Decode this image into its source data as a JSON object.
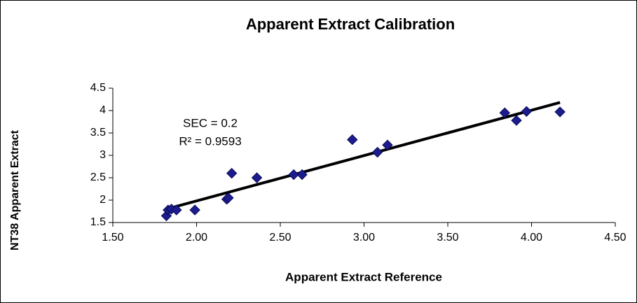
{
  "chart_data": {
    "type": "scatter",
    "title": "Apparent Extract Calibration",
    "xlabel": "Apparent Extract Reference",
    "ylabel": "NT38 Apparent Extract",
    "annotations": [
      "SEC = 0.2",
      "R² = 0.9593"
    ],
    "color": "#1c1c8c",
    "x": [
      1.82,
      1.83,
      1.85,
      1.88,
      1.99,
      2.18,
      2.19,
      2.21,
      2.36,
      2.58,
      2.63,
      2.93,
      3.08,
      3.14,
      3.84,
      3.91,
      3.97,
      4.17
    ],
    "series": [
      {
        "name": "Apparent Extract",
        "color": "#1c1c8c",
        "values": [
          1.65,
          1.78,
          1.8,
          1.78,
          1.78,
          2.02,
          2.05,
          2.6,
          2.5,
          2.57,
          2.57,
          3.35,
          3.07,
          3.23,
          3.95,
          3.78,
          3.98,
          3.97
        ]
      }
    ],
    "trendline": {
      "x": [
        1.82,
        4.17
      ],
      "y": [
        1.8,
        4.18
      ],
      "color": "#000000"
    },
    "xlim": [
      1.5,
      4.5
    ],
    "xticks": [
      {
        "value": 1.5,
        "label": "1.50"
      },
      {
        "value": 2,
        "label": "2.00"
      },
      {
        "value": 2.5,
        "label": "2.50"
      },
      {
        "value": 3,
        "label": "3.00"
      },
      {
        "value": 3.5,
        "label": "3.50"
      },
      {
        "value": 4,
        "label": "4.00"
      },
      {
        "value": 4.5,
        "label": "4.50"
      }
    ],
    "ylim": [
      1.5,
      4.5
    ],
    "yticks": [
      1.5,
      2,
      2.5,
      3,
      3.5,
      4,
      4.5
    ]
  }
}
